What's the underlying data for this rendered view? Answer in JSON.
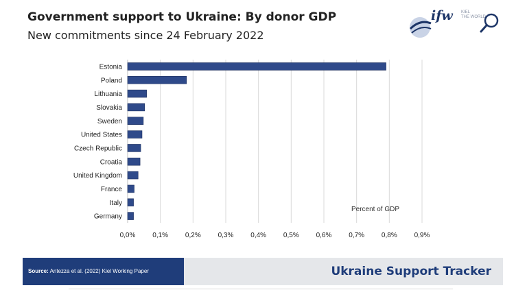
{
  "header": {
    "title": "Government support to Ukraine: By donor GDP",
    "subtitle": "New commitments since 24 February 2022"
  },
  "logo": {
    "text": "ifw",
    "small_line1": "KIEL",
    "small_line2": "THE WORLD",
    "icon": "search-icon"
  },
  "footer": {
    "source_label": "Source:",
    "source_text": "Antezza et al. (2022) Kiel Working Paper",
    "tracker": "Ukraine Support Tracker"
  },
  "colors": {
    "bar": "#2f4a8a",
    "bar_stroke": "#1c2f5e",
    "grid": "#d9d9d9",
    "brand": "#1f3d7a"
  },
  "chart_data": {
    "type": "bar",
    "orientation": "horizontal",
    "categories": [
      "Estonia",
      "Poland",
      "Lithuania",
      "Slovakia",
      "Sweden",
      "United States",
      "Czech Republic",
      "Croatia",
      "United Kingdom",
      "France",
      "Italy",
      "Germany"
    ],
    "values": [
      0.79,
      0.18,
      0.058,
      0.052,
      0.048,
      0.044,
      0.04,
      0.038,
      0.032,
      0.02,
      0.018,
      0.018
    ],
    "xlim": [
      0,
      0.9
    ],
    "xticks": [
      0,
      0.1,
      0.2,
      0.3,
      0.4,
      0.5,
      0.6,
      0.7,
      0.8,
      0.9
    ],
    "xtick_labels": [
      "0,0%",
      "0,1%",
      "0,2%",
      "0,3%",
      "0,4%",
      "0,5%",
      "0,6%",
      "0,7%",
      "0,8%",
      "0,9%"
    ],
    "annotation": "Percent of GDP",
    "grid": "vertical",
    "legend": "none"
  }
}
